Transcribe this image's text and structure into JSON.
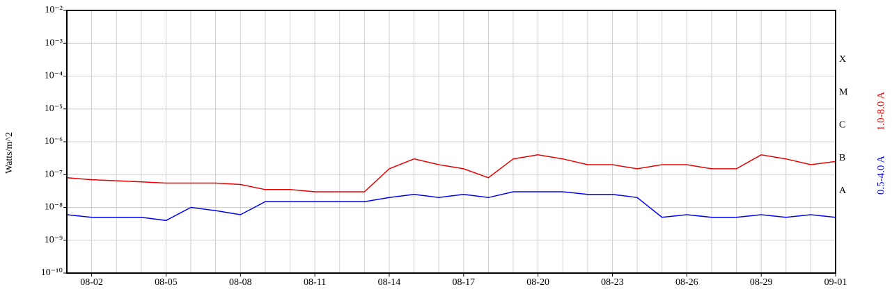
{
  "chart_data": {
    "type": "line",
    "y_label": "Watts/m^2",
    "x": [
      "08-01",
      "08-02",
      "08-03",
      "08-04",
      "08-05",
      "08-06",
      "08-07",
      "08-08",
      "08-09",
      "08-10",
      "08-11",
      "08-12",
      "08-13",
      "08-14",
      "08-15",
      "08-16",
      "08-17",
      "08-18",
      "08-19",
      "08-20",
      "08-21",
      "08-22",
      "08-23",
      "08-24",
      "08-25",
      "08-26",
      "08-27",
      "08-28",
      "08-29",
      "08-30",
      "08-31",
      "09-01"
    ],
    "xlim": [
      "08-01",
      "09-01"
    ],
    "xticks": [
      "08-02",
      "08-05",
      "08-08",
      "08-11",
      "08-14",
      "08-17",
      "08-20",
      "08-23",
      "08-26",
      "08-29",
      "09-01"
    ],
    "ylim": [
      1e-10,
      0.01
    ],
    "yscale": "log",
    "yticks": [
      {
        "value": 1e-10,
        "label": "10⁻¹⁰"
      },
      {
        "value": 1e-09,
        "label": "10⁻⁹"
      },
      {
        "value": 1e-08,
        "label": "10⁻⁸"
      },
      {
        "value": 1e-07,
        "label": "10⁻⁷"
      },
      {
        "value": 1e-06,
        "label": "10⁻⁶"
      },
      {
        "value": 1e-05,
        "label": "10⁻⁵"
      },
      {
        "value": 0.0001,
        "label": "10⁻⁴"
      },
      {
        "value": 0.001,
        "label": "10⁻³"
      },
      {
        "value": 0.01,
        "label": "10⁻²"
      }
    ],
    "grid": true,
    "flare_classes": [
      {
        "label": "X",
        "value": 0.0001
      },
      {
        "label": "M",
        "value": 1e-05
      },
      {
        "label": "C",
        "value": 1e-06
      },
      {
        "label": "B",
        "value": 1e-07
      },
      {
        "label": "A",
        "value": 1e-08
      }
    ],
    "series": [
      {
        "name": "1.0-8.0 A",
        "color": "#e80000",
        "values": [
          8e-08,
          7e-08,
          6.5e-08,
          6e-08,
          5.5e-08,
          5.5e-08,
          5.5e-08,
          5e-08,
          3.5e-08,
          3.5e-08,
          3e-08,
          3e-08,
          3e-08,
          1.5e-07,
          3e-07,
          2e-07,
          1.5e-07,
          8e-08,
          3e-07,
          4e-07,
          3e-07,
          2e-07,
          2e-07,
          1.5e-07,
          2e-07,
          2e-07,
          1.5e-07,
          1.5e-07,
          4e-07,
          3e-07,
          2e-07,
          2.5e-07
        ]
      },
      {
        "name": "0.5-4.0 A",
        "color": "#0000ee",
        "values": [
          6e-09,
          5e-09,
          5e-09,
          5e-09,
          4e-09,
          1e-08,
          8e-09,
          6e-09,
          1.5e-08,
          1.5e-08,
          1.5e-08,
          1.5e-08,
          1.5e-08,
          2e-08,
          2.5e-08,
          2e-08,
          2.5e-08,
          2e-08,
          3e-08,
          3e-08,
          3e-08,
          2.5e-08,
          2.5e-08,
          2e-08,
          5e-09,
          6e-09,
          5e-09,
          5e-09,
          6e-09,
          5e-09,
          6e-09,
          5e-09
        ]
      }
    ]
  }
}
